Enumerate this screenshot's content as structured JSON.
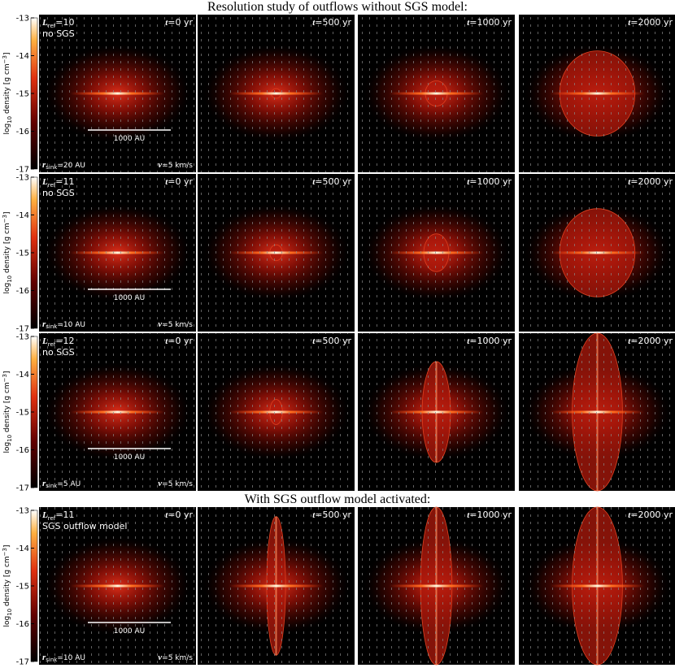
{
  "title": "Resolution study of outflows without SGS model:",
  "subtitle": "With SGS outflow model activated:",
  "symbols": {
    "level": "L",
    "level_sub": "ref",
    "time": "t",
    "sink": "r",
    "sink_sub": "sink",
    "velocity": "v"
  },
  "colorbar": {
    "ticks": [
      -13,
      -14,
      -15,
      -16,
      -17
    ],
    "label": [
      "log",
      "10",
      " density [g cm",
      "−3",
      "]"
    ]
  },
  "rows": [
    {
      "level": "=10",
      "note": "no SGS",
      "sink": "=20 AU",
      "scale": "1000 AU",
      "velocity": "=5 km/s",
      "times": [
        "=0 yr",
        "=500 yr",
        "=1000 yr",
        "=2000 yr"
      ]
    },
    {
      "level": "=11",
      "note": "no SGS",
      "sink": "=10 AU",
      "scale": "1000 AU",
      "velocity": "=5 km/s",
      "times": [
        "=0 yr",
        "=500 yr",
        "=1000 yr",
        "=2000 yr"
      ]
    },
    {
      "level": "=12",
      "note": "no SGS",
      "sink": "=5 AU",
      "scale": "1000 AU",
      "velocity": "=5 km/s",
      "times": [
        "=0 yr",
        "=500 yr",
        "=1000 yr",
        "=2000 yr"
      ]
    },
    {
      "level": "=11",
      "note": "SGS outflow model",
      "sink": "=10 AU",
      "scale": "1000 AU",
      "velocity": "=5 km/s",
      "times": [
        "=0 yr",
        "=500 yr",
        "=1000 yr",
        "=2000 yr"
      ]
    }
  ]
}
